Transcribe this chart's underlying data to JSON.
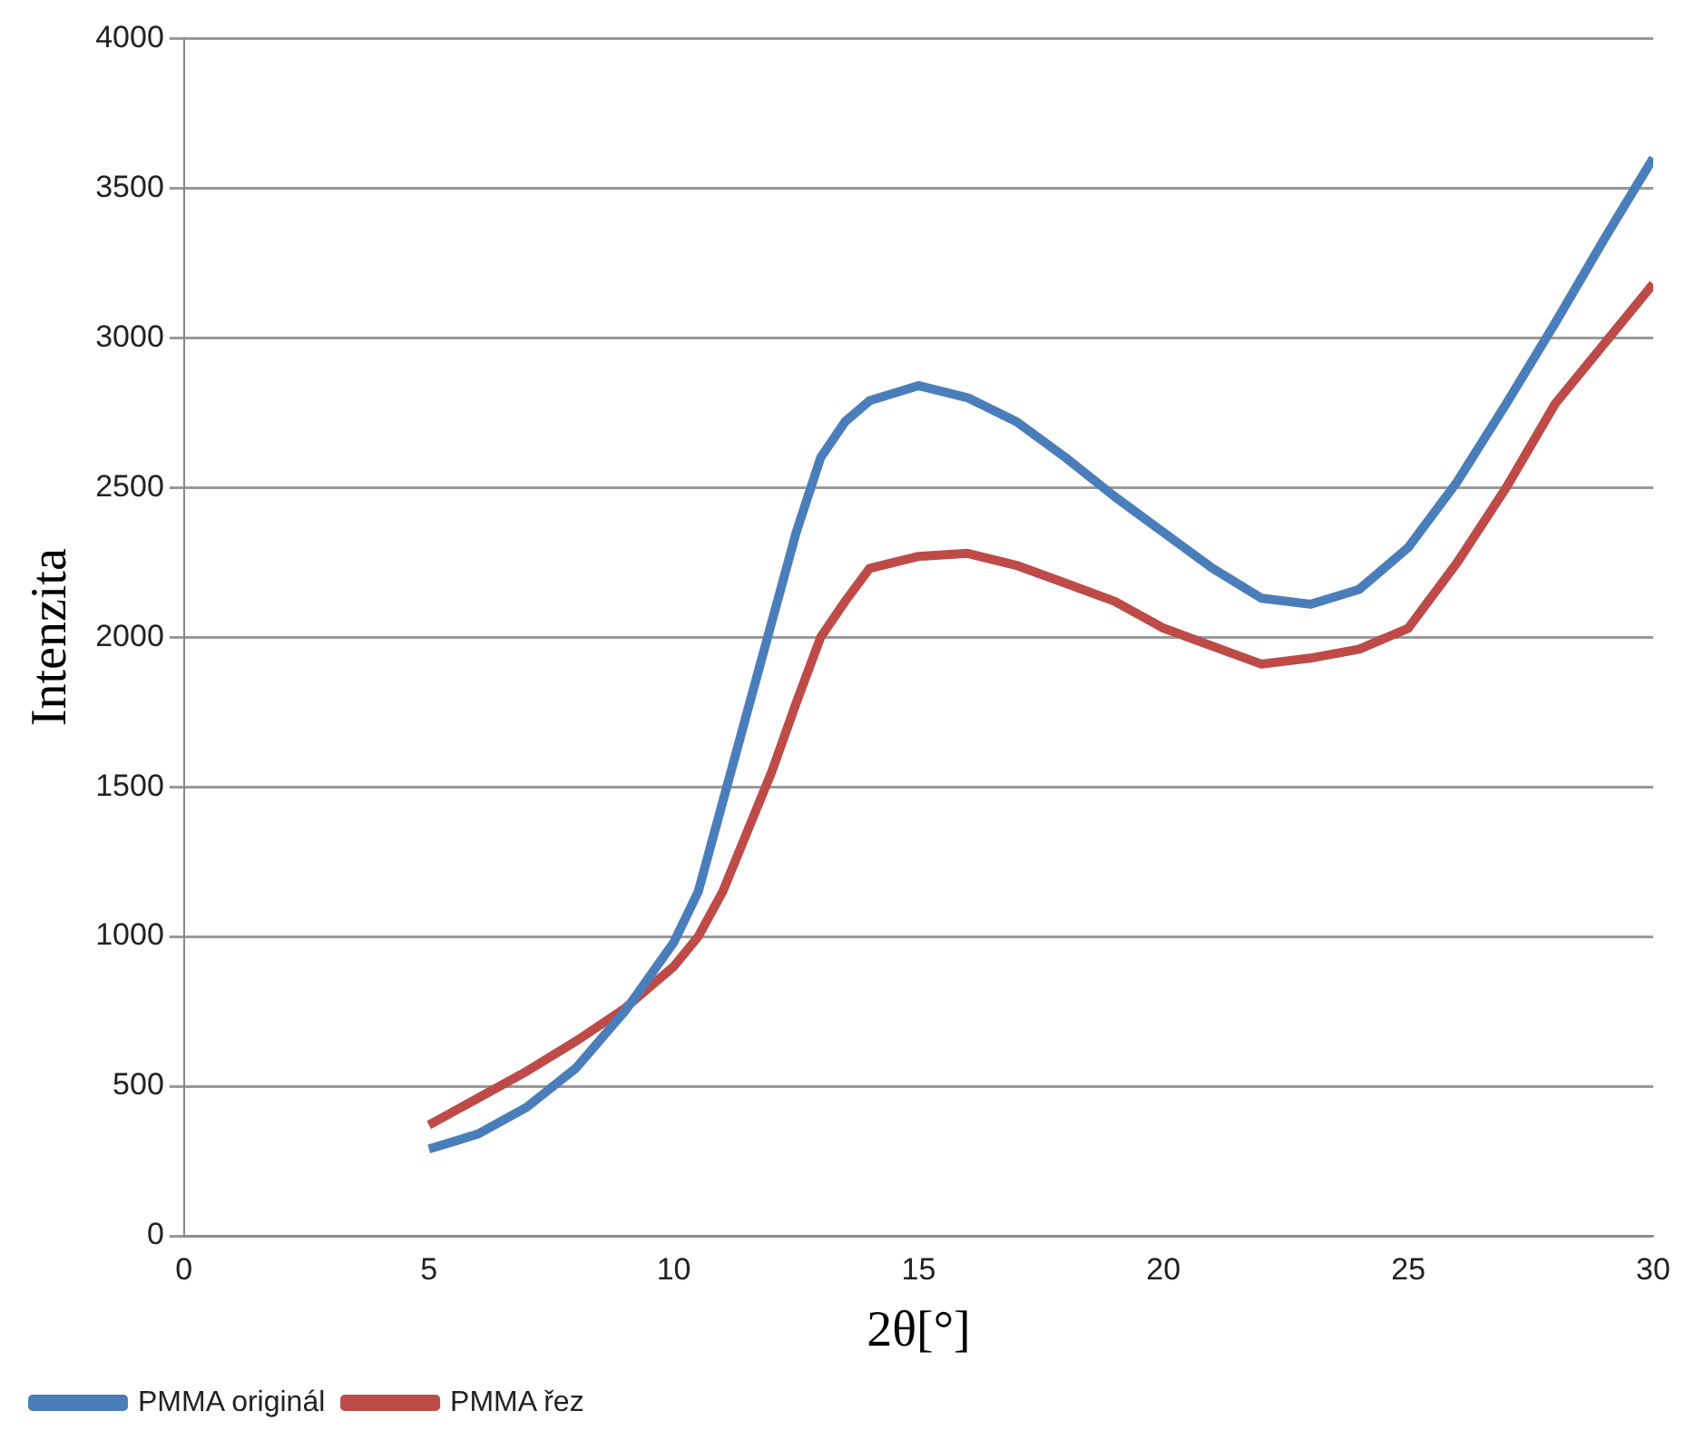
{
  "chart_data": {
    "type": "line",
    "xlabel": "2θ[°]",
    "ylabel": "Intenzita",
    "xlim": [
      0,
      30
    ],
    "xticks": [
      0,
      5,
      10,
      15,
      20,
      25,
      30
    ],
    "ylim": [
      0,
      4000
    ],
    "yticks": [
      0,
      500,
      1000,
      1500,
      2000,
      2500,
      3000,
      3500,
      4000
    ],
    "grid": "y",
    "legend": "bottom",
    "marker": "none",
    "line_style": "solid",
    "x": [
      5,
      6,
      7,
      8,
      9,
      10,
      10.5,
      11,
      11.5,
      12,
      12.5,
      13,
      13.5,
      14,
      15,
      16,
      17,
      18,
      19,
      20,
      21,
      22,
      23,
      24,
      25,
      26,
      27,
      28,
      29,
      30
    ],
    "series": [
      {
        "name": "PMMA originál",
        "color": "#4a7ebb",
        "values": [
          290,
          340,
          430,
          560,
          750,
          980,
          1150,
          1450,
          1750,
          2050,
          2350,
          2600,
          2720,
          2790,
          2840,
          2800,
          2720,
          2600,
          2470,
          2350,
          2230,
          2130,
          2110,
          2160,
          2300,
          2520,
          2780,
          3050,
          3330,
          3600
        ]
      },
      {
        "name": "PMMA řez",
        "color": "#be4b48",
        "values": [
          370,
          460,
          550,
          650,
          760,
          900,
          1000,
          1150,
          1350,
          1550,
          1780,
          2000,
          2120,
          2230,
          2270,
          2280,
          2240,
          2180,
          2120,
          2030,
          1970,
          1910,
          1930,
          1960,
          2030,
          2250,
          2500,
          2780,
          2980,
          3180
        ]
      }
    ]
  }
}
